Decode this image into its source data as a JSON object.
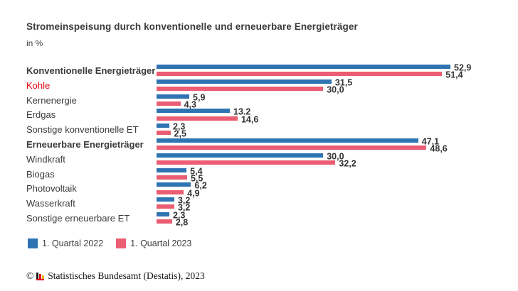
{
  "header": {
    "title": "Stromeinspeisung durch konventionelle und erneuerbare Energieträger",
    "subtitle": "in %"
  },
  "chart_data": {
    "type": "bar",
    "orientation": "horizontal",
    "unit": "%",
    "title": "Stromeinspeisung durch konventionelle und erneuerbare Energieträger",
    "xlabel": "",
    "ylabel": "",
    "xlim": [
      0,
      55
    ],
    "grid": false,
    "legend_position": "bottom",
    "value_decimal_separator": "comma",
    "categories": [
      {
        "label": "Konventionelle Energieträger",
        "bold": true,
        "color": "#3b3b3b"
      },
      {
        "label": "Kohle",
        "bold": false,
        "color": "#e30613"
      },
      {
        "label": "Kernenergie",
        "bold": false,
        "color": "#3b3b3b"
      },
      {
        "label": "Erdgas",
        "bold": false,
        "color": "#3b3b3b"
      },
      {
        "label": "Sonstige konventionelle ET",
        "bold": false,
        "color": "#3b3b3b"
      },
      {
        "label": "Erneuerbare Energieträger",
        "bold": true,
        "color": "#3b3b3b"
      },
      {
        "label": "Windkraft",
        "bold": false,
        "color": "#3b3b3b"
      },
      {
        "label": "Biogas",
        "bold": false,
        "color": "#3b3b3b"
      },
      {
        "label": "Photovoltaik",
        "bold": false,
        "color": "#3b3b3b"
      },
      {
        "label": "Wasserkraft",
        "bold": false,
        "color": "#3b3b3b"
      },
      {
        "label": "Sonstige erneuerbare ET",
        "bold": false,
        "color": "#3b3b3b"
      }
    ],
    "series": [
      {
        "name": "1. Quartal 2022",
        "color": "#2e73b2",
        "values": [
          52.9,
          31.5,
          5.9,
          13.2,
          2.3,
          47.1,
          30.0,
          5.4,
          6.2,
          3.2,
          2.3
        ],
        "display": [
          "52,9",
          "31,5",
          "5,9",
          "13.2",
          "2,3",
          "47,1",
          "30,0",
          "5,4",
          "6,2",
          "3,2",
          "2,3"
        ]
      },
      {
        "name": "1. Quartal 2023",
        "color": "#ea5d72",
        "values": [
          51.4,
          30.0,
          4.3,
          14.6,
          2.5,
          48.6,
          32.2,
          5.5,
          4.9,
          3.2,
          2.8
        ],
        "display": [
          "51,4",
          "30,0",
          "4,3",
          "14,6",
          "2,5",
          "48,6",
          "32,2",
          "5,5",
          "4,9",
          "3,2",
          "2,8"
        ]
      }
    ]
  },
  "legend": {
    "items": [
      {
        "label": "1. Quartal 2022",
        "color": "#2e73b2"
      },
      {
        "label": "1. Quartal 2023",
        "color": "#ea5d72"
      }
    ]
  },
  "footer": {
    "copyright_symbol": "©",
    "source": "Statistisches Bundesamt (Destatis), 2023",
    "logo": {
      "name": "destatis-bar-chart-logo",
      "bar_colors": [
        "#1a1a1a",
        "#e30613",
        "#f0b400"
      ],
      "underline_color": "#e30613"
    }
  }
}
